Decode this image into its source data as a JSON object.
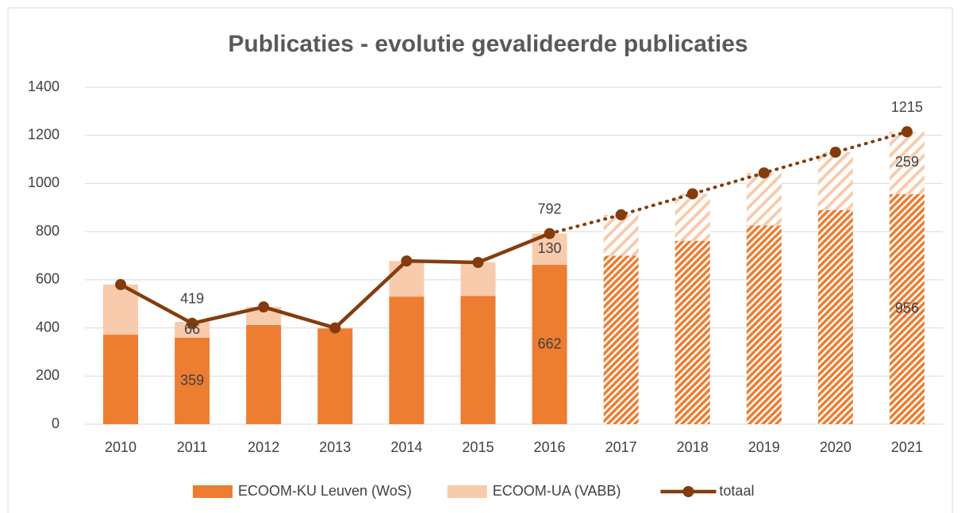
{
  "chart_data": {
    "type": "bar_line",
    "title": "Publicaties - evolutie gevalideerde publicaties",
    "categories": [
      "2010",
      "2011",
      "2012",
      "2013",
      "2014",
      "2015",
      "2016",
      "2017",
      "2018",
      "2019",
      "2020",
      "2021"
    ],
    "series": [
      {
        "name": "ECOOM-KU Leuven (WoS)",
        "color": "#ed7d31",
        "kind": "bar",
        "values": [
          372,
          359,
          412,
          398,
          530,
          533,
          662,
          700,
          762,
          826,
          890,
          956
        ]
      },
      {
        "name": "ECOOM-UA (VABB)",
        "color": "#f8cbad",
        "kind": "bar",
        "values": [
          208,
          66,
          75,
          2,
          148,
          140,
          130,
          170,
          195,
          218,
          240,
          259
        ]
      },
      {
        "name": "totaal",
        "color": "#843c0c",
        "kind": "line",
        "values": [
          580,
          419,
          487,
          400,
          678,
          672,
          792,
          870,
          957,
          1044,
          1130,
          1215
        ]
      }
    ],
    "forecast_from": 7,
    "labeled_indices": [
      1,
      6,
      11
    ],
    "ylim": [
      0,
      1400
    ],
    "yticks": [
      0,
      200,
      400,
      600,
      800,
      1000,
      1200,
      1400
    ],
    "grid": true,
    "legend": "bottom"
  }
}
